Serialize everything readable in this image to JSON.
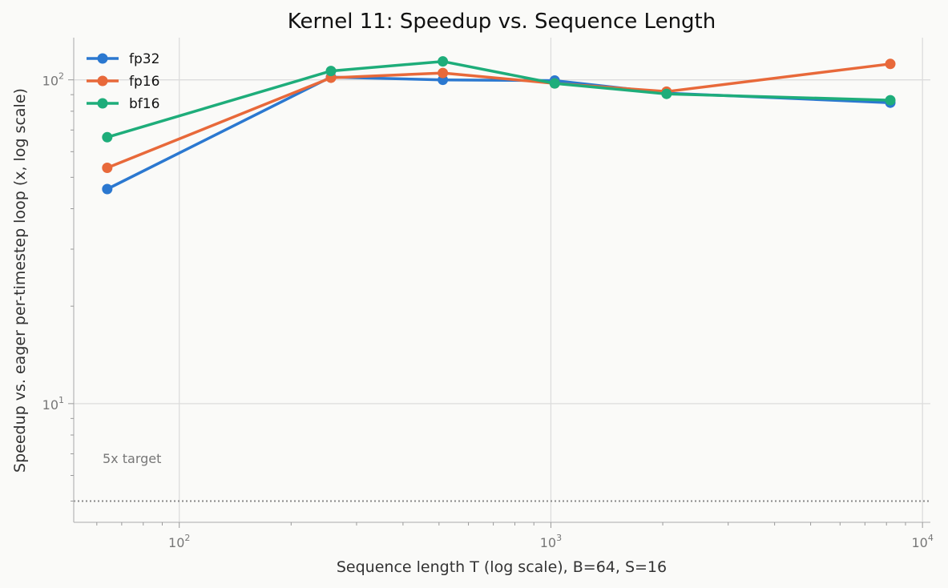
{
  "chart_data": {
    "type": "line",
    "title": "Kernel 11: Speedup vs. Sequence Length",
    "xlabel": "Sequence length T (log scale), B=64, S=16",
    "ylabel": "Speedup vs. eager per-timestep loop (x, log scale)",
    "xscale": "log",
    "yscale": "log",
    "xlim": [
      52,
      10500
    ],
    "ylim": [
      4.3,
      135
    ],
    "x": [
      64,
      256,
      512,
      1024,
      2048,
      8192
    ],
    "series": [
      {
        "name": "fp32",
        "color": "#2b78d0",
        "values": [
          46,
          102,
          100,
          99.5,
          91,
          85
        ]
      },
      {
        "name": "fp16",
        "color": "#e8693a",
        "values": [
          53.5,
          101.5,
          105,
          97.5,
          92,
          112
        ]
      },
      {
        "name": "bf16",
        "color": "#1ead7a",
        "values": [
          66.5,
          106.5,
          114,
          97.5,
          90.5,
          86.5
        ]
      }
    ],
    "x_ticks": [
      {
        "value": 100,
        "base": "10",
        "exp": "2"
      },
      {
        "value": 1000,
        "base": "10",
        "exp": "3"
      },
      {
        "value": 10000,
        "base": "10",
        "exp": "4"
      }
    ],
    "y_ticks": [
      {
        "value": 10,
        "base": "10",
        "exp": "1"
      },
      {
        "value": 100,
        "base": "10",
        "exp": "2"
      }
    ],
    "reference_line": {
      "value": 5,
      "label": "5x target",
      "color": "#888888",
      "style": "dotted"
    },
    "legend": {
      "position": "top-left"
    },
    "grid": true
  }
}
